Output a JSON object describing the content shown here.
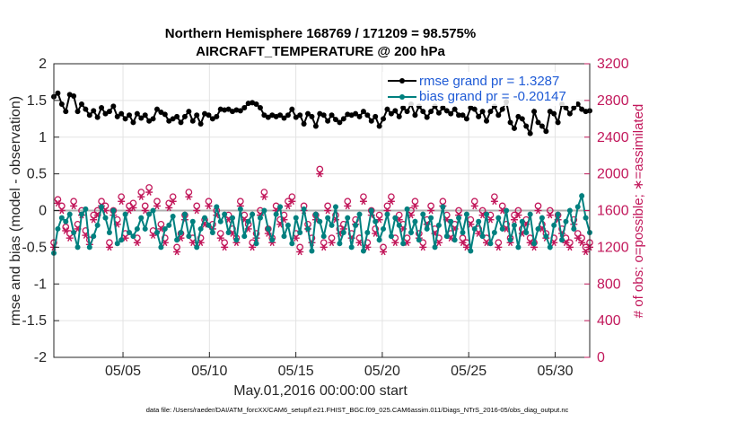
{
  "chart_data": {
    "type": "line",
    "title": [
      "Northern Hemisphere 168769 / 171209 = 98.575%",
      "AIRCRAFT_TEMPERATURE @ 200 hPa"
    ],
    "xlabel": "May.01,2016 00:00:00 start",
    "ylabel": "rmse and bias (model - observation)",
    "ylabel_right": "# of obs: o=possible; ∗=assimilated",
    "footnote": "data file: /Users/raeder/DAI/ATM_forcXX/CAM6_setup/f.e21.FHIST_BGC.f09_025.CAM6assim.011/Diags_NTrS_2016-05/obs_diag_output.nc",
    "xlim": [
      1,
      32
    ],
    "ylim": [
      -2,
      2
    ],
    "ylim_right": [
      0,
      3200
    ],
    "x_ticks": [
      5,
      10,
      15,
      20,
      25,
      30
    ],
    "x_tick_labels": [
      "05/05",
      "05/10",
      "05/15",
      "05/20",
      "05/25",
      "05/30"
    ],
    "y_ticks": [
      -2,
      -1.5,
      -1,
      -0.5,
      0,
      0.5,
      1,
      1.5,
      2
    ],
    "y_tick_labels": [
      "-2",
      "-1.5",
      "-1",
      "-0.5",
      "0",
      "0.5",
      "1",
      "1.5",
      "2"
    ],
    "y_right_ticks": [
      0,
      400,
      800,
      1200,
      1600,
      2000,
      2400,
      2800,
      3200
    ],
    "y_right_tick_labels": [
      "0",
      "400",
      "800",
      "1200",
      "1600",
      "2000",
      "2400",
      "2800",
      "3200"
    ],
    "grid": true,
    "legend_position": "top-right",
    "zero_line": 0,
    "series": [
      {
        "name": "rmse grand pr = 1.3287",
        "axis": "left",
        "color": "#000000",
        "marker": "circle",
        "values": [
          1.55,
          1.6,
          1.45,
          1.35,
          1.58,
          1.56,
          1.35,
          1.45,
          1.38,
          1.3,
          1.36,
          1.27,
          1.4,
          1.32,
          1.35,
          1.42,
          1.28,
          1.32,
          1.25,
          1.3,
          1.2,
          1.32,
          1.26,
          1.3,
          1.22,
          1.25,
          1.38,
          1.34,
          1.31,
          1.22,
          1.25,
          1.28,
          1.2,
          1.28,
          1.35,
          1.22,
          1.3,
          1.18,
          1.32,
          1.3,
          1.25,
          1.28,
          1.38,
          1.37,
          1.38,
          1.35,
          1.37,
          1.36,
          1.4,
          1.46,
          1.47,
          1.45,
          1.4,
          1.3,
          1.27,
          1.3,
          1.28,
          1.3,
          1.26,
          1.3,
          1.38,
          1.27,
          1.3,
          1.18,
          1.32,
          1.28,
          1.15,
          1.32,
          1.3,
          1.22,
          1.3,
          1.24,
          1.2,
          1.25,
          1.31,
          1.3,
          1.32,
          1.28,
          1.35,
          1.3,
          1.22,
          1.28,
          1.15,
          1.25,
          1.38,
          1.32,
          1.36,
          1.28,
          1.4,
          1.35,
          1.45,
          1.3,
          1.42,
          1.35,
          1.27,
          1.35,
          1.42,
          1.33,
          1.4,
          1.36,
          1.32,
          1.38,
          1.3,
          1.3,
          1.25,
          1.4,
          1.38,
          1.28,
          1.35,
          1.22,
          1.35,
          1.42,
          1.3,
          1.38,
          1.48,
          1.2,
          1.12,
          1.28,
          1.25,
          1.15,
          1.05,
          1.35,
          1.2,
          1.15,
          1.08,
          1.35,
          1.32,
          1.2,
          1.45,
          1.4,
          1.32,
          1.4,
          1.45,
          1.38,
          1.35,
          1.36
        ]
      },
      {
        "name": "bias grand pr = -0.20147",
        "axis": "left",
        "color": "#00807f",
        "marker": "circle",
        "values": [
          -0.58,
          -0.25,
          -0.1,
          -0.15,
          -0.05,
          -0.3,
          -0.5,
          -0.05,
          0.02,
          -0.5,
          -0.35,
          -0.2,
          0.05,
          -0.1,
          -0.3,
          0.0,
          -0.45,
          -0.4,
          -0.05,
          -0.3,
          -0.35,
          -0.25,
          -0.1,
          -0.25,
          -0.05,
          0.0,
          -0.3,
          -0.5,
          -0.25,
          -0.2,
          -0.08,
          -0.4,
          -0.3,
          -0.05,
          -0.35,
          -0.15,
          -0.5,
          -0.25,
          -0.1,
          -0.2,
          -0.3,
          0.05,
          -0.15,
          -0.05,
          -0.3,
          -0.1,
          -0.4,
          0.02,
          -0.35,
          -0.15,
          -0.05,
          -0.45,
          -0.1,
          0.0,
          -0.25,
          -0.4,
          -0.05,
          0.05,
          -0.35,
          -0.2,
          -0.45,
          -0.1,
          -0.3,
          0.02,
          -0.25,
          -0.55,
          -0.05,
          -0.15,
          -0.35,
          -0.1,
          -0.2,
          0.05,
          -0.45,
          -0.3,
          -0.1,
          -0.5,
          -0.2,
          -0.05,
          -0.55,
          -0.3,
          0.0,
          -0.15,
          -0.4,
          -0.25,
          -0.05,
          -0.35,
          -0.1,
          -0.2,
          -0.45,
          0.02,
          -0.3,
          -0.15,
          -0.4,
          -0.05,
          -0.25,
          -0.1,
          -0.5,
          -0.2,
          0.05,
          -0.35,
          -0.15,
          -0.4,
          -0.1,
          -0.3,
          -0.05,
          -0.55,
          -0.25,
          -0.15,
          -0.35,
          -0.05,
          -0.45,
          -0.3,
          -0.1,
          -0.25,
          0.0,
          -0.4,
          -0.2,
          -0.5,
          -0.15,
          -0.3,
          -0.05,
          -0.45,
          -0.25,
          -0.1,
          -0.35,
          -0.5,
          -0.2,
          -0.05,
          -0.4,
          -0.15,
          0.0,
          -0.25,
          0.05,
          0.2,
          -0.1,
          -0.3
        ]
      },
      {
        "name": "possible",
        "axis": "right",
        "color": "#c2185b",
        "marker": "o",
        "values": [
          1250,
          1720,
          1650,
          1420,
          1350,
          1700,
          1450,
          1600,
          1380,
          1280,
          1550,
          1600,
          1700,
          1650,
          1250,
          1600,
          1500,
          1750,
          1350,
          1650,
          1680,
          1300,
          1800,
          1650,
          1850,
          1380,
          1700,
          1450,
          1300,
          1680,
          1750,
          1200,
          1350,
          1550,
          1800,
          1300,
          1650,
          1300,
          1500,
          1700,
          1450,
          1600,
          1350,
          1250,
          1550,
          1400,
          1300,
          1700,
          1550,
          1450,
          1250,
          1350,
          1600,
          1800,
          1400,
          1300,
          1650,
          1500,
          1550,
          1700,
          1750,
          1350,
          1200,
          1650,
          1450,
          1300,
          1550,
          2050,
          1250,
          1650,
          1300,
          1550,
          1400,
          1450,
          1700,
          1350,
          1500,
          1300,
          1750,
          1250,
          1600,
          1400,
          1550,
          1200,
          1650,
          1750,
          1300,
          1550,
          1450,
          1300,
          1600,
          1700,
          1350,
          1250,
          1500,
          1650,
          1400,
          1300,
          1700,
          1550,
          1350,
          1450,
          1600,
          1300,
          1250,
          1500,
          1700,
          1400,
          1600,
          1300,
          1550,
          1750,
          1250,
          1650,
          1450,
          1300,
          1550,
          1600,
          1400,
          1500,
          1300,
          1250,
          1650,
          1450,
          1350,
          1600,
          1300,
          1550,
          1400,
          1300,
          1250,
          1500,
          1350,
          1300,
          1200,
          1250
        ]
      },
      {
        "name": "assimilated",
        "axis": "right",
        "color": "#c2185b",
        "marker": "*",
        "values": [
          1200,
          1680,
          1600,
          1380,
          1300,
          1650,
          1400,
          1550,
          1330,
          1230,
          1500,
          1550,
          1650,
          1600,
          1200,
          1550,
          1450,
          1700,
          1300,
          1600,
          1630,
          1250,
          1750,
          1600,
          1800,
          1330,
          1650,
          1400,
          1250,
          1630,
          1700,
          1150,
          1300,
          1500,
          1750,
          1250,
          1600,
          1250,
          1450,
          1650,
          1400,
          1550,
          1300,
          1200,
          1500,
          1350,
          1250,
          1650,
          1500,
          1400,
          1200,
          1300,
          1550,
          1750,
          1350,
          1250,
          1600,
          1450,
          1500,
          1650,
          1700,
          1300,
          1150,
          1600,
          1400,
          1250,
          1500,
          2000,
          1200,
          1600,
          1250,
          1500,
          1350,
          1400,
          1650,
          1300,
          1450,
          1250,
          1700,
          1200,
          1550,
          1350,
          1500,
          1150,
          1600,
          1700,
          1250,
          1500,
          1400,
          1250,
          1550,
          1650,
          1300,
          1200,
          1450,
          1600,
          1350,
          1250,
          1650,
          1500,
          1300,
          1400,
          1550,
          1250,
          1200,
          1450,
          1650,
          1350,
          1550,
          1250,
          1500,
          1700,
          1200,
          1600,
          1400,
          1250,
          1500,
          1550,
          1350,
          1450,
          1250,
          1200,
          1600,
          1400,
          1300,
          1550,
          1250,
          1500,
          1350,
          1250,
          1200,
          1450,
          1300,
          1250,
          1150,
          1200
        ]
      }
    ]
  }
}
